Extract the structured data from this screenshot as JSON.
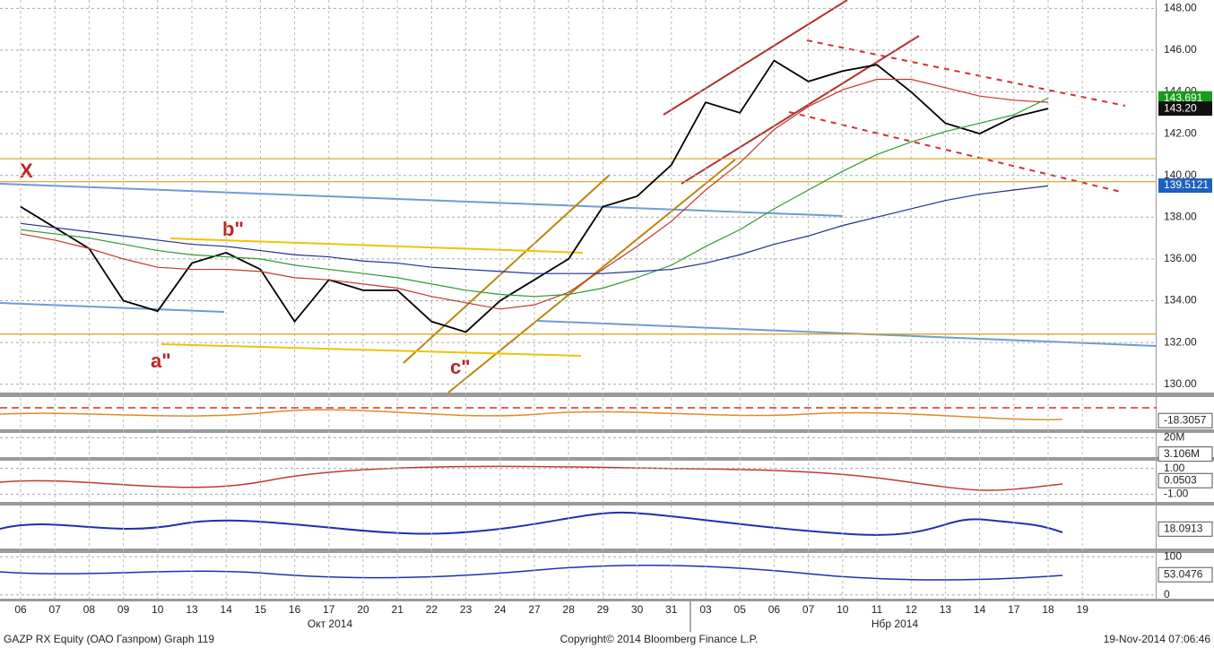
{
  "chart_data": {
    "type": "line",
    "categories": [
      "06",
      "07",
      "08",
      "09",
      "10",
      "13",
      "14",
      "15",
      "16",
      "17",
      "20",
      "21",
      "22",
      "23",
      "24",
      "27",
      "28",
      "29",
      "30",
      "31",
      "03",
      "05",
      "06",
      "07",
      "10",
      "11",
      "12",
      "13",
      "14",
      "17",
      "18",
      "19"
    ],
    "series": [
      {
        "color": "#000000",
        "values": [
          138.5,
          137.5,
          136.5,
          134,
          133.5,
          135.8,
          136.3,
          135.5,
          133,
          135,
          134.5,
          134.5,
          133,
          132.5,
          134,
          135,
          136,
          138.5,
          139,
          140.5,
          143.5,
          143,
          145.5,
          144.5,
          145,
          145.3,
          144,
          142.5,
          142,
          142.8,
          143.2,
          null
        ]
      },
      {
        "color": "#c0392b",
        "values": [
          137.2,
          136.9,
          136.5,
          136,
          135.6,
          135.5,
          135.5,
          135.4,
          135.1,
          135,
          134.8,
          134.6,
          134.2,
          133.9,
          133.6,
          133.8,
          134.4,
          135.5,
          136.6,
          137.8,
          139.3,
          140.6,
          142.2,
          143.3,
          144.1,
          144.6,
          144.6,
          144.2,
          143.8,
          143.6,
          143.5,
          null
        ]
      },
      {
        "color": "#2e9b2e",
        "values": [
          137.4,
          137.2,
          137,
          136.7,
          136.4,
          136.2,
          136.1,
          136,
          135.7,
          135.5,
          135.3,
          135.1,
          134.8,
          134.5,
          134.3,
          134.2,
          134.3,
          134.6,
          135.1,
          135.7,
          136.6,
          137.4,
          138.4,
          139.3,
          140.2,
          141,
          141.6,
          142.1,
          142.5,
          142.9,
          143.7,
          null
        ]
      },
      {
        "color": "#1f2f8f",
        "values": [
          137.7,
          137.5,
          137.3,
          137.1,
          136.9,
          136.7,
          136.6,
          136.4,
          136.2,
          136.1,
          135.9,
          135.8,
          135.6,
          135.5,
          135.4,
          135.3,
          135.3,
          135.3,
          135.4,
          135.5,
          135.8,
          136.2,
          136.7,
          137.1,
          137.6,
          138,
          138.4,
          138.8,
          139.1,
          139.3,
          139.5,
          null
        ]
      }
    ],
    "ylim": [
      129.6,
      148.4
    ],
    "yticks": [
      {
        "value": 130,
        "label": "130.00"
      },
      {
        "value": 132,
        "label": "132.00"
      },
      {
        "value": 134,
        "label": "134.00"
      },
      {
        "value": 136,
        "label": "136.00"
      },
      {
        "value": 138,
        "label": "138.00"
      },
      {
        "value": 140,
        "label": "140.00"
      },
      {
        "value": 142,
        "label": "142.00"
      },
      {
        "value": 144,
        "label": "144.00"
      },
      {
        "value": 146,
        "label": "146.00"
      },
      {
        "value": 148,
        "label": "148.00"
      }
    ],
    "grid": true,
    "hlines": [
      {
        "value": 140.8,
        "color": "#d4a017"
      },
      {
        "value": 139.7,
        "color": "#d4a017"
      },
      {
        "value": 132.4,
        "color": "#d4a017"
      }
    ],
    "price_tags": [
      {
        "value": 143.691,
        "color": "#1a9c1a"
      },
      {
        "value": 143.2,
        "label": "143.20",
        "color": "#111111"
      },
      {
        "value": 139.5121,
        "color": "#1f5fbf"
      }
    ],
    "annotations": [
      "X",
      "b\"",
      "a\"",
      "c\""
    ],
    "months": [
      "Окт 2014",
      "Нбр 2014"
    ],
    "panels": [
      {
        "ylim": [
          -40,
          40
        ],
        "ticks": [],
        "tag": -18.3057
      },
      {
        "ylim": [
          0,
          25000000
        ],
        "ticks": [
          {
            "value": 20000000,
            "label": "20M"
          }
        ],
        "tag": {
          "value": 3106000,
          "label": "3.106M"
        }
      },
      {
        "ylim": [
          -1.6,
          1.6
        ],
        "ticks": [
          {
            "value": 1,
            "label": "1.00"
          },
          {
            "value": -1,
            "label": "-1.00"
          }
        ],
        "tag": 0.0503
      },
      {
        "ylim": [
          0,
          40
        ],
        "ticks": [],
        "tag": 18.0913
      },
      {
        "ylim": [
          -10,
          110
        ],
        "ticks": [
          100,
          0
        ],
        "tag": 53.0476
      }
    ],
    "footer": {
      "left": "GAZP RX Equity (ОАО Газпром) Graph 119",
      "center": "Copyright© 2014 Bloomberg Finance L.P.",
      "right": "19-Nov-2014 07:06:46"
    }
  }
}
